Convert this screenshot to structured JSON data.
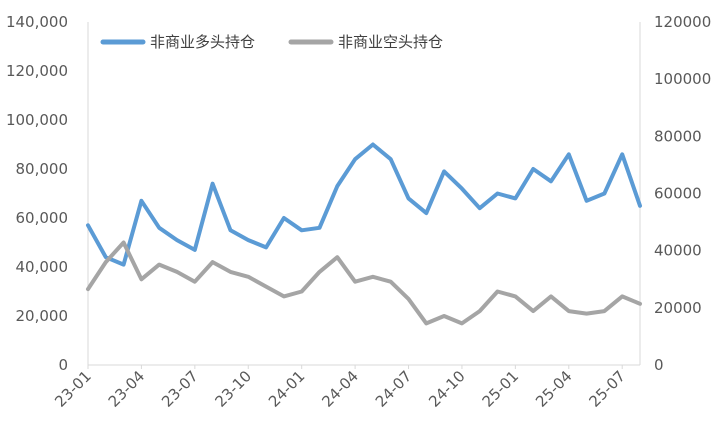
{
  "chart_data": {
    "type": "line",
    "title": "",
    "x": [
      "23-01",
      "23-02",
      "23-03",
      "23-04",
      "23-05",
      "23-06",
      "23-07",
      "23-08",
      "23-09",
      "23-10",
      "23-11",
      "23-12",
      "24-01",
      "24-02",
      "24-03",
      "24-04",
      "24-05",
      "24-06",
      "24-07",
      "24-08",
      "24-09",
      "24-10",
      "24-11",
      "24-12",
      "25-01",
      "25-02",
      "25-03",
      "25-04",
      "25-05",
      "25-06",
      "25-07",
      "25-08"
    ],
    "x_tick_labels": [
      "23-01",
      "23-04",
      "23-07",
      "23-10",
      "24-01",
      "24-04",
      "24-07",
      "24-10",
      "25-01",
      "25-04",
      "25-07"
    ],
    "y_left": {
      "ylim": [
        0,
        140000
      ],
      "ticks": [
        "0",
        "20,000",
        "40,000",
        "60,000",
        "80,000",
        "100,000",
        "120,000",
        "140,000"
      ]
    },
    "y_right": {
      "ylim": [
        0,
        120000
      ],
      "ticks": [
        "0",
        "20000",
        "40000",
        "60000",
        "80000",
        "100000",
        "120000"
      ]
    },
    "legend_position": "top-left",
    "series": [
      {
        "name": "非商业多头持仓",
        "axis": "left",
        "color": "#5B9BD5",
        "values": [
          57000,
          44000,
          41000,
          67000,
          56000,
          51000,
          47000,
          74000,
          55000,
          51000,
          48000,
          60000,
          55000,
          56000,
          73000,
          84000,
          90000,
          84000,
          68000,
          62000,
          79000,
          72000,
          64000,
          70000,
          68000,
          80000,
          75000,
          86000,
          67000,
          70000,
          86000,
          65000
        ]
      },
      {
        "name": "非商业空头持仓",
        "axis": "left",
        "color": "#A5A5A5",
        "values": [
          31000,
          42000,
          50000,
          35000,
          41000,
          38000,
          34000,
          42000,
          38000,
          36000,
          32000,
          28000,
          30000,
          38000,
          44000,
          34000,
          36000,
          34000,
          27000,
          17000,
          20000,
          17000,
          22000,
          30000,
          28000,
          22000,
          28000,
          22000,
          21000,
          22000,
          28000,
          25000
        ]
      }
    ]
  }
}
